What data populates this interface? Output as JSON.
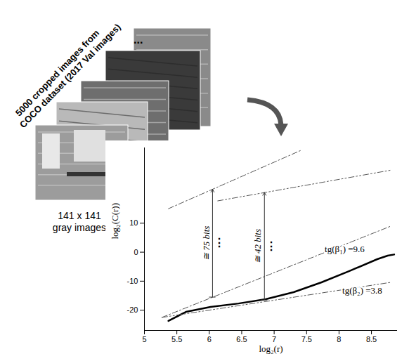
{
  "panel": {
    "title_lines": [
      "5000 cropped images from",
      "COCO dataset (2017 Val images)"
    ],
    "ellipsis": "...",
    "caption_lines": [
      "141  x  141",
      "gray images"
    ]
  },
  "chart_data": {
    "type": "line",
    "x_label": "log₂(r)",
    "y_label": "log₂(C(r))",
    "xlim": [
      5,
      8.9
    ],
    "ylim": [
      -27,
      36
    ],
    "xticks": [
      5,
      5.5,
      6,
      6.5,
      7,
      7.5,
      8,
      8.5
    ],
    "yticks": [
      -20,
      -10,
      0,
      10
    ],
    "series": [
      {
        "color": "#000000",
        "line_style": "solid",
        "x": [
          5.37,
          5.64,
          6.02,
          6.45,
          6.87,
          7.3,
          7.73,
          8.16,
          8.59,
          8.75,
          8.85
        ],
        "values": [
          -23.7,
          -20.6,
          -18.9,
          -17.7,
          -16.2,
          -13.8,
          -10.4,
          -6.5,
          -2.4,
          -1.2,
          -0.8
        ]
      },
      {
        "color": "#555555",
        "line_style": "dashdot",
        "x": [
          5.27,
          8.8
        ],
        "values": [
          -22.5,
          9
        ]
      },
      {
        "color": "#555555",
        "line_style": "dashdotdot",
        "x": [
          5.27,
          8.8
        ],
        "values": [
          -22.5,
          -10.4
        ]
      },
      {
        "color": "#555555",
        "line_style": "dashdot",
        "x": [
          5.37,
          7.41
        ],
        "values": [
          15,
          35.1
        ]
      },
      {
        "color": "#555555",
        "line_style": "dashdotdot",
        "x": [
          6.13,
          8.8
        ],
        "values": [
          17.7,
          28.3
        ]
      }
    ],
    "arrows": [
      {
        "text": "≅ 75 bits",
        "dots": "⋮",
        "x": 6.05,
        "y1": -15.5,
        "y2": 21.7
      },
      {
        "text": "≅ 42 bits",
        "dots": "⋮",
        "x": 6.85,
        "y1": -16.5,
        "y2": 20.6
      }
    ],
    "labels": [
      {
        "text": "tg(β₁) =9.6",
        "x": 7.78,
        "y": 1.0
      },
      {
        "text": "tg(β₂) =3.8",
        "x": 8.05,
        "y": -13.3
      }
    ]
  }
}
